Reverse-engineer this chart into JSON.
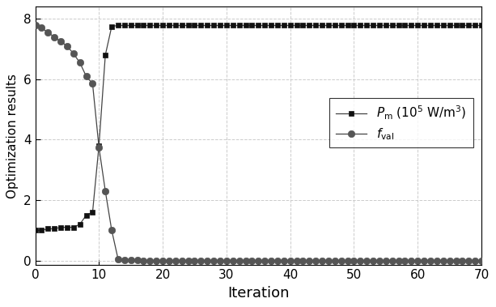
{
  "pm_x": [
    0,
    1,
    2,
    3,
    4,
    5,
    6,
    7,
    8,
    9,
    10,
    11,
    12,
    13,
    14,
    15,
    16,
    17,
    18,
    19,
    20,
    21,
    22,
    23,
    24,
    25,
    26,
    27,
    28,
    29,
    30,
    31,
    32,
    33,
    34,
    35,
    36,
    37,
    38,
    39,
    40,
    41,
    42,
    43,
    44,
    45,
    46,
    47,
    48,
    49,
    50,
    51,
    52,
    53,
    54,
    55,
    56,
    57,
    58,
    59,
    60,
    61,
    62,
    63,
    64,
    65,
    66,
    67,
    68,
    69,
    70
  ],
  "pm_y": [
    1.0,
    1.0,
    1.05,
    1.05,
    1.1,
    1.1,
    1.1,
    1.2,
    1.5,
    1.6,
    3.8,
    6.8,
    7.75,
    7.78,
    7.78,
    7.78,
    7.78,
    7.78,
    7.78,
    7.78,
    7.78,
    7.78,
    7.78,
    7.78,
    7.78,
    7.78,
    7.78,
    7.78,
    7.78,
    7.78,
    7.78,
    7.78,
    7.78,
    7.78,
    7.78,
    7.78,
    7.78,
    7.78,
    7.78,
    7.78,
    7.78,
    7.78,
    7.78,
    7.78,
    7.78,
    7.78,
    7.78,
    7.78,
    7.78,
    7.78,
    7.78,
    7.78,
    7.78,
    7.78,
    7.78,
    7.78,
    7.78,
    7.78,
    7.78,
    7.78,
    7.78,
    7.78,
    7.78,
    7.78,
    7.78,
    7.78,
    7.78,
    7.78,
    7.78,
    7.78,
    7.78
  ],
  "fval_x": [
    0,
    1,
    2,
    3,
    4,
    5,
    6,
    7,
    8,
    9,
    10,
    11,
    12,
    13,
    14,
    15,
    16,
    17,
    18,
    19,
    20,
    21,
    22,
    23,
    24,
    25,
    26,
    27,
    28,
    29,
    30,
    31,
    32,
    33,
    34,
    35,
    36,
    37,
    38,
    39,
    40,
    41,
    42,
    43,
    44,
    45,
    46,
    47,
    48,
    49,
    50,
    51,
    52,
    53,
    54,
    55,
    56,
    57,
    58,
    59,
    60,
    61,
    62,
    63,
    64,
    65,
    66,
    67,
    68,
    69,
    70
  ],
  "fval_y": [
    7.78,
    7.7,
    7.55,
    7.4,
    7.25,
    7.1,
    6.85,
    6.55,
    6.1,
    5.85,
    3.75,
    2.3,
    1.0,
    0.05,
    0.02,
    0.01,
    0.005,
    0.002,
    0.001,
    0.001,
    0.001,
    0.001,
    0.001,
    0.001,
    0.001,
    0.001,
    0.001,
    0.001,
    0.001,
    0.001,
    0.001,
    0.001,
    0.001,
    0.001,
    0.001,
    0.001,
    0.001,
    0.001,
    0.001,
    0.001,
    0.001,
    0.001,
    0.001,
    0.001,
    0.001,
    0.001,
    0.001,
    0.001,
    0.001,
    0.001,
    0.001,
    0.001,
    0.001,
    0.001,
    0.001,
    0.001,
    0.001,
    0.001,
    0.001,
    0.001,
    0.001,
    0.001,
    0.001,
    0.001,
    0.001,
    0.001,
    0.001,
    0.001,
    0.001,
    0.001,
    0.001
  ],
  "line_color": "#444444",
  "square_color": "#111111",
  "circle_color": "#555555",
  "xlabel": "Iteration",
  "ylabel": "Optimization results",
  "xlim": [
    0,
    70
  ],
  "ylim": [
    -0.15,
    8.4
  ],
  "yticks": [
    0,
    2,
    4,
    6,
    8
  ],
  "xticks": [
    0,
    10,
    20,
    30,
    40,
    50,
    60,
    70
  ],
  "grid_color": "#cccccc",
  "grid_style": "--",
  "legend_pm": "$P_\\mathrm{m}$ (10$^5$ W/m$^3$)",
  "legend_fval": "$f_\\mathrm{val}$",
  "bg_color": "#ffffff",
  "tick_labelsize": 11,
  "xlabel_fontsize": 13,
  "ylabel_fontsize": 11,
  "legend_fontsize": 11
}
